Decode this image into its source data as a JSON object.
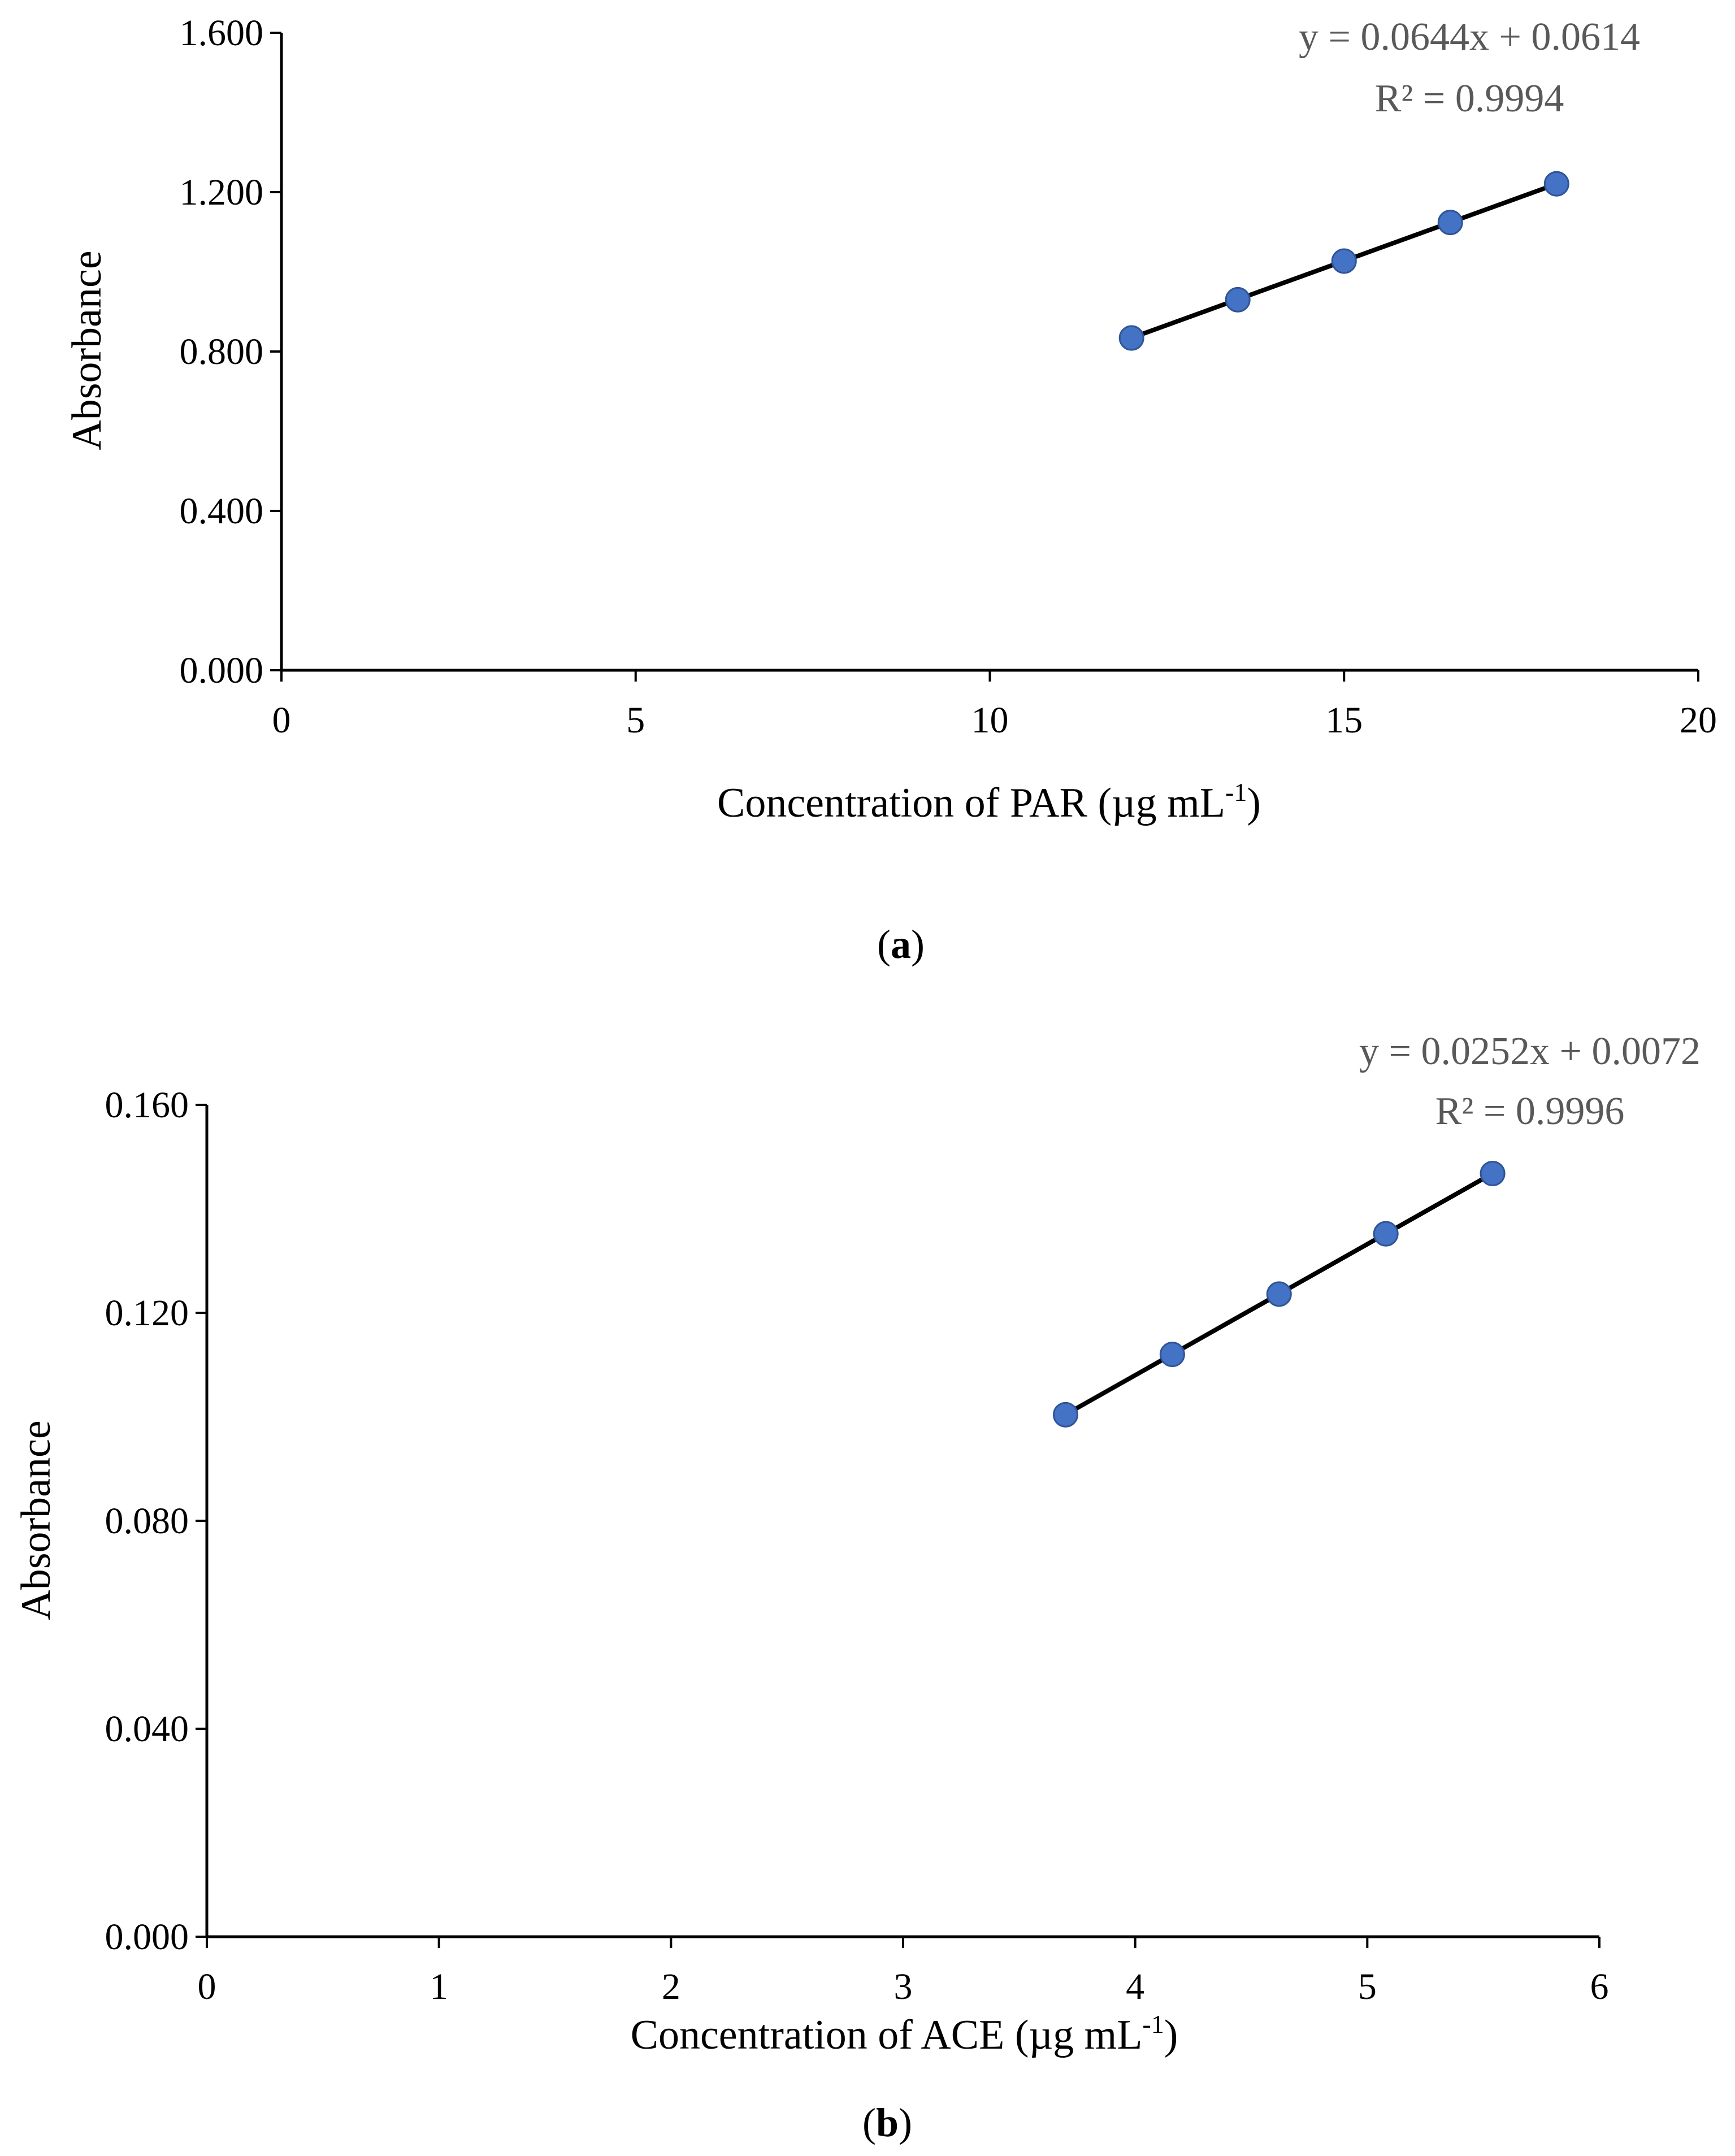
{
  "chart_data": [
    {
      "type": "scatter",
      "x": [
        12,
        13.5,
        15,
        16.5,
        18
      ],
      "y": [
        0.834,
        0.93,
        1.027,
        1.124,
        1.221
      ],
      "trendline": {
        "equation": "y = 0.0644x + 0.0614",
        "r_squared": "R² = 0.9994",
        "slope": 0.0644,
        "intercept": 0.0614,
        "x_range": [
          12,
          18
        ]
      },
      "xlabel_main": "Concentration of PAR (µg mL",
      "xlabel_sup": "-1",
      "xlabel_end": ")",
      "ylabel": "Absorbance",
      "xlim": [
        0,
        20
      ],
      "ylim": [
        0,
        1.6
      ],
      "x_ticks": [
        "0",
        "5",
        "10",
        "15",
        "20"
      ],
      "y_ticks": [
        "0.000",
        "0.400",
        "0.800",
        "1.200",
        "1.600"
      ],
      "caption_open": "(",
      "caption_letter": "a",
      "caption_close": ")",
      "marker_color": "#4472C4",
      "grid": false
    },
    {
      "type": "scatter",
      "x": [
        3.7,
        4.16,
        4.62,
        5.08,
        5.54
      ],
      "y": [
        0.1004,
        0.112,
        0.1236,
        0.1352,
        0.1468
      ],
      "trendline": {
        "equation": "y = 0.0252x + 0.0072",
        "r_squared": "R² = 0.9996",
        "slope": 0.0252,
        "intercept": 0.0072,
        "x_range": [
          3.7,
          5.54
        ]
      },
      "xlabel_main": "Concentration of  ACE (µg mL",
      "xlabel_sup": "-1",
      "xlabel_end": ")",
      "ylabel": "Absorbance",
      "xlim": [
        0,
        6
      ],
      "ylim": [
        0,
        0.16
      ],
      "x_ticks": [
        "0",
        "1",
        "2",
        "3",
        "4",
        "5",
        "6"
      ],
      "y_ticks": [
        "0.000",
        "0.040",
        "0.080",
        "0.120",
        "0.160"
      ],
      "caption_open": "(",
      "caption_letter": "b",
      "caption_close": ")",
      "marker_color": "#4472C4",
      "grid": false
    }
  ]
}
